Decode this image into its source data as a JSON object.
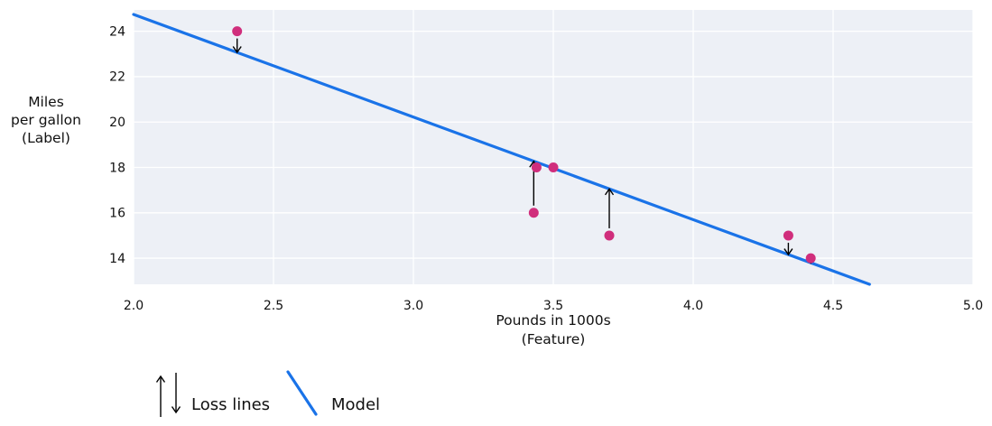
{
  "figure": {
    "background": "#ffffff",
    "plot_background": "#edf0f6",
    "grid_color": "#ffffff",
    "text_color": "#111111"
  },
  "chart_data": {
    "type": "scatter",
    "title": "",
    "xlabel_lines": [
      "Pounds in 1000s",
      "(Feature)"
    ],
    "ylabel_lines": [
      "Miles",
      "per gallon",
      "(Label)"
    ],
    "xlim": [
      2.0,
      5.0
    ],
    "ylim": [
      12.85,
      24.94
    ],
    "x_ticks": [
      "2.0",
      "2.5",
      "3.0",
      "3.5",
      "4.0",
      "4.5",
      "5.0"
    ],
    "y_ticks": [
      "14",
      "16",
      "18",
      "20",
      "22",
      "24"
    ],
    "grid": true,
    "points": {
      "color": "#d02e7c",
      "data": [
        {
          "x": 2.37,
          "y": 24
        },
        {
          "x": 3.44,
          "y": 18
        },
        {
          "x": 3.5,
          "y": 18
        },
        {
          "x": 3.43,
          "y": 16
        },
        {
          "x": 3.7,
          "y": 15
        },
        {
          "x": 4.34,
          "y": 15
        },
        {
          "x": 4.42,
          "y": 14
        }
      ]
    },
    "model_line": {
      "color": "#1a73e8",
      "x1": 2.0,
      "y1": 24.74,
      "x2": 4.63,
      "y2": 12.85
    },
    "loss_lines": {
      "color": "#000000",
      "data": [
        {
          "x": 2.37,
          "from_y": 24,
          "to_y": 23.07,
          "direction": "down"
        },
        {
          "x": 3.43,
          "from_y": 16,
          "to_y": 18.27,
          "direction": "up"
        },
        {
          "x": 3.7,
          "from_y": 15,
          "to_y": 17.05,
          "direction": "up"
        },
        {
          "x": 4.34,
          "from_y": 15,
          "to_y": 14.16,
          "direction": "down"
        },
        {
          "x": 4.42,
          "from_y": 14,
          "to_y": 13.79,
          "direction": "down"
        }
      ]
    },
    "legend": {
      "position": "bottom-left",
      "entries": [
        {
          "label": "Loss lines",
          "symbol": "arrows"
        },
        {
          "label": "Model",
          "symbol": "line"
        }
      ]
    }
  }
}
